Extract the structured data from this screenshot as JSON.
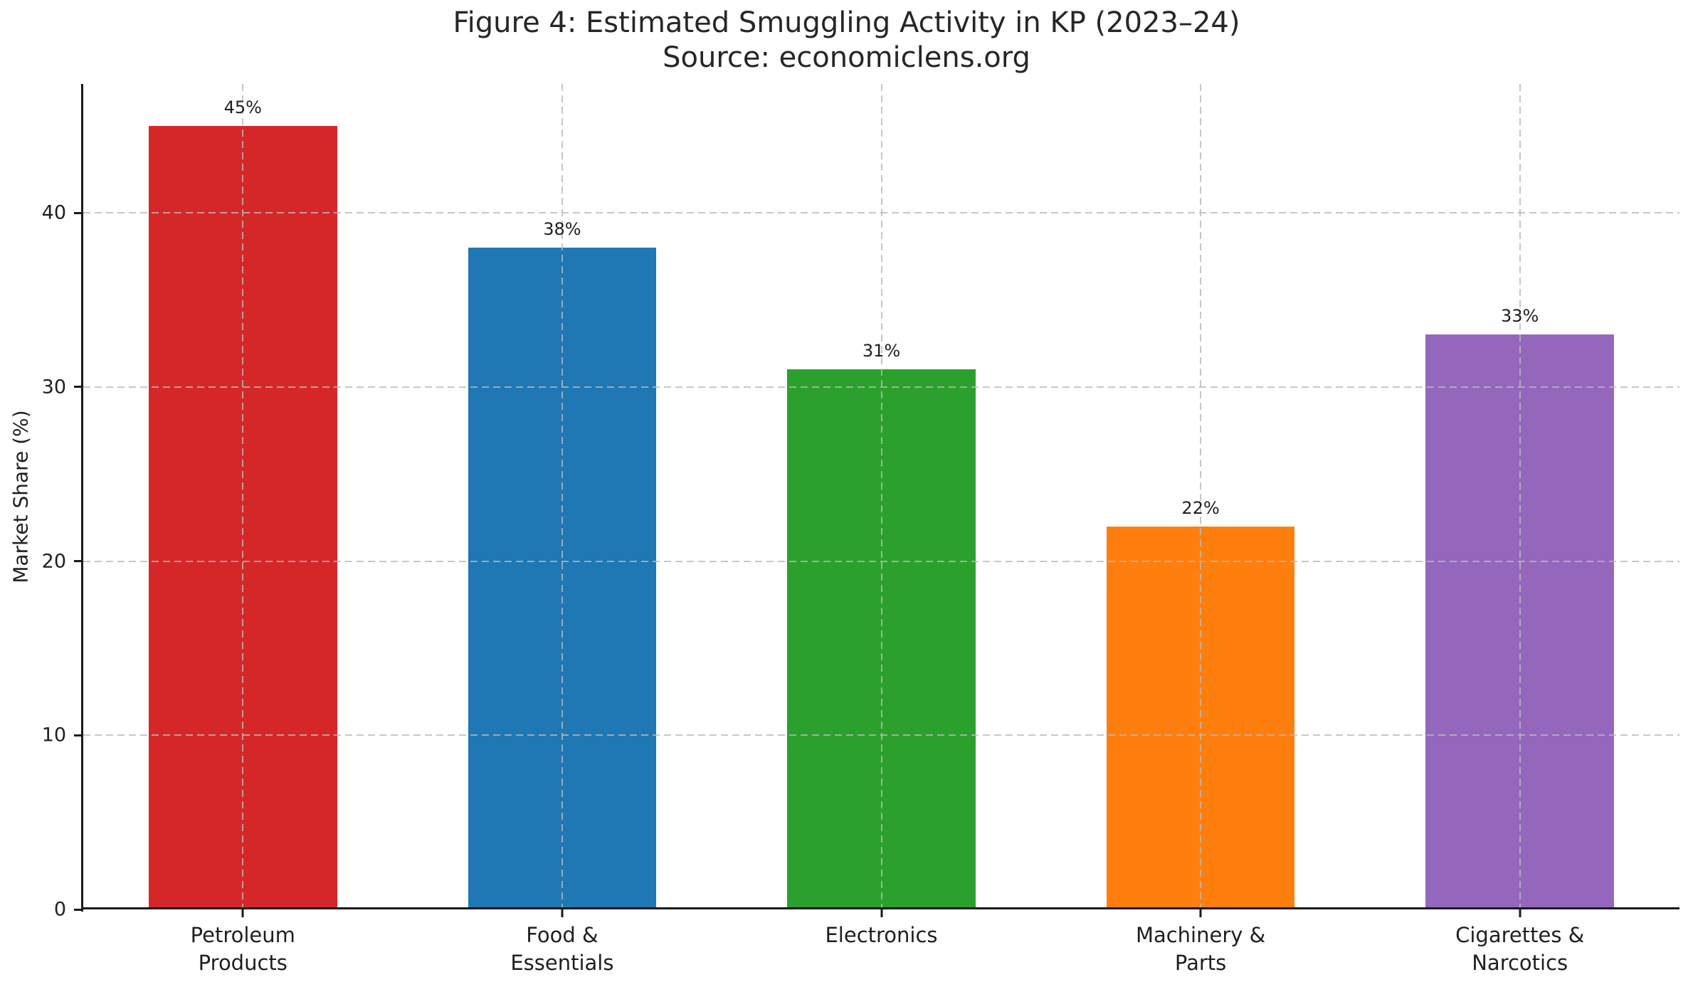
{
  "figure": {
    "title": "Figure 4: Estimated Smuggling Activity in KP (2023–24)",
    "subtitle": "Source: economiclens.org"
  },
  "chart_data": {
    "type": "bar",
    "title": "Figure 4: Estimated Smuggling Activity in KP (2023–24)",
    "subtitle": "Source: economiclens.org",
    "categories": [
      "Petroleum\nProducts",
      "Food &\nEssentials",
      "Electronics",
      "Machinery &\nParts",
      "Cigarettes &\nNarcotics"
    ],
    "values": [
      45,
      38,
      31,
      22,
      33
    ],
    "value_labels": [
      "45%",
      "38%",
      "31%",
      "22%",
      "33%"
    ],
    "bar_colors": [
      "#d62728",
      "#1f77b4",
      "#2ca02c",
      "#ff7f0e",
      "#9467bd"
    ],
    "xlabel": "",
    "ylabel": "Market Share (%)",
    "yticks": [
      0,
      10,
      20,
      30,
      40
    ],
    "ylim": [
      0,
      47.4
    ],
    "bar_width_fraction": 0.59,
    "grid": {
      "horizontal": true,
      "vertical": true,
      "style": "dashed",
      "color": "#c9c9c9",
      "above_bars": true
    },
    "legend_position": "none"
  }
}
